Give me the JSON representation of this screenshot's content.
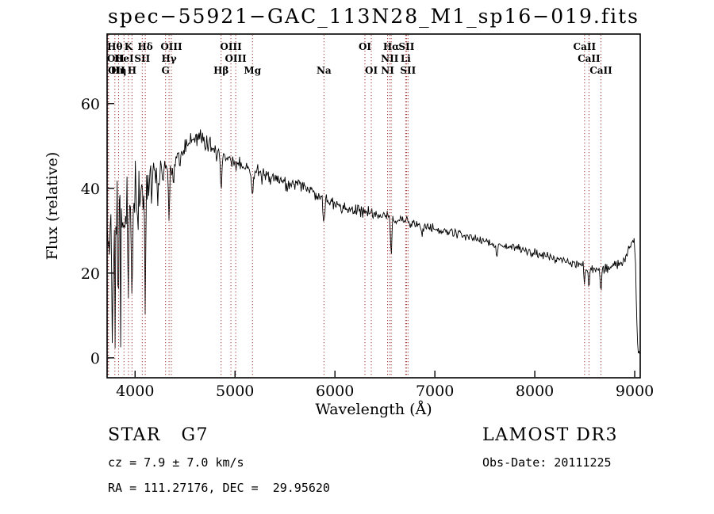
{
  "chart_data": {
    "type": "line",
    "title": "spec−55921−GAC_113N28_M1_sp16−019.fits",
    "xlabel": "Wavelength (Å)",
    "ylabel": "Flux (relative)",
    "xlim": [
      3720,
      9055
    ],
    "ylim": [
      -4.7,
      76.4
    ],
    "x_ticks": [
      4000,
      5000,
      6000,
      7000,
      8000,
      9000
    ],
    "y_ticks": [
      0,
      20,
      40,
      60
    ],
    "grid": false,
    "line_color": "#000000",
    "marker_line_color": "#a03232",
    "spectral_lines": [
      {
        "wavelength": 3727,
        "label": "OII",
        "row": 2,
        "dx": 10
      },
      {
        "wavelength": 3735,
        "label": "OII",
        "row": 3,
        "dx": 10
      },
      {
        "wavelength": 3798,
        "label": "Hθ",
        "row": 1
      },
      {
        "wavelength": 3835,
        "label": "Hη",
        "row": 3
      },
      {
        "wavelength": 3889,
        "label": "HeI",
        "row": 2
      },
      {
        "wavelength": 3934,
        "label": "K",
        "row": 1
      },
      {
        "wavelength": 3969,
        "label": "H",
        "row": 3
      },
      {
        "wavelength": 4072,
        "label": "SII",
        "row": 2
      },
      {
        "wavelength": 4102,
        "label": "Hδ",
        "row": 1
      },
      {
        "wavelength": 4305,
        "label": "G",
        "row": 3
      },
      {
        "wavelength": 4340,
        "label": "Hγ",
        "row": 2
      },
      {
        "wavelength": 4363,
        "label": "OIII",
        "row": 1
      },
      {
        "wavelength": 4861,
        "label": "Hβ",
        "row": 3
      },
      {
        "wavelength": 4959,
        "label": "OIII",
        "row": 1
      },
      {
        "wavelength": 5007,
        "label": "OIII",
        "row": 2
      },
      {
        "wavelength": 5175,
        "label": "Mg",
        "row": 3
      },
      {
        "wavelength": 5890,
        "label": "Na",
        "row": 3
      },
      {
        "wavelength": 6300,
        "label": "OI",
        "row": 1
      },
      {
        "wavelength": 6364,
        "label": "OI",
        "row": 3
      },
      {
        "wavelength": 6548,
        "label": "NII",
        "row": 2
      },
      {
        "wavelength": 6563,
        "label": "Hα",
        "row": 1
      },
      {
        "wavelength": 6527,
        "label": "NI",
        "row": 3
      },
      {
        "wavelength": 6708,
        "label": "Li",
        "row": 2
      },
      {
        "wavelength": 6716,
        "label": "SII",
        "row": 1
      },
      {
        "wavelength": 6731,
        "label": "SII",
        "row": 3
      },
      {
        "wavelength": 8498,
        "label": "CaII",
        "row": 1
      },
      {
        "wavelength": 8542,
        "label": "CaII",
        "row": 2
      },
      {
        "wavelength": 8662,
        "label": "CaII",
        "row": 3
      }
    ],
    "spectrum": {
      "seed": 42,
      "step": 7,
      "continuum": [
        [
          3720,
          29
        ],
        [
          3780,
          31
        ],
        [
          3840,
          33
        ],
        [
          3900,
          35
        ],
        [
          3960,
          36
        ],
        [
          4020,
          38
        ],
        [
          4080,
          39
        ],
        [
          4140,
          41
        ],
        [
          4200,
          42
        ],
        [
          4260,
          44
        ],
        [
          4320,
          45
        ],
        [
          4380,
          46
        ],
        [
          4440,
          47.5
        ],
        [
          4500,
          49
        ],
        [
          4560,
          50.5
        ],
        [
          4620,
          51.5
        ],
        [
          4660,
          52
        ],
        [
          4700,
          51
        ],
        [
          4760,
          50
        ],
        [
          4820,
          48.5
        ],
        [
          4880,
          47.5
        ],
        [
          4940,
          47
        ],
        [
          5000,
          46
        ],
        [
          5060,
          45.5
        ],
        [
          5120,
          45
        ],
        [
          5180,
          44
        ],
        [
          5240,
          44
        ],
        [
          5300,
          43
        ],
        [
          5360,
          42.5
        ],
        [
          5420,
          42
        ],
        [
          5480,
          41.5
        ],
        [
          5540,
          41
        ],
        [
          5600,
          41
        ],
        [
          5660,
          40.5
        ],
        [
          5720,
          40
        ],
        [
          5780,
          39
        ],
        [
          5840,
          38.5
        ],
        [
          5900,
          37.5
        ],
        [
          5960,
          36.5
        ],
        [
          6020,
          36
        ],
        [
          6080,
          35.5
        ],
        [
          6140,
          35
        ],
        [
          6200,
          35
        ],
        [
          6260,
          34.5
        ],
        [
          6320,
          34.5
        ],
        [
          6380,
          34
        ],
        [
          6440,
          33.5
        ],
        [
          6500,
          33.5
        ],
        [
          6560,
          33
        ],
        [
          6620,
          32.5
        ],
        [
          6680,
          32.5
        ],
        [
          6740,
          32
        ],
        [
          6800,
          31.5
        ],
        [
          6860,
          31
        ],
        [
          6920,
          31
        ],
        [
          6980,
          30.5
        ],
        [
          7040,
          30
        ],
        [
          7100,
          30
        ],
        [
          7160,
          29.5
        ],
        [
          7220,
          29
        ],
        [
          7280,
          29
        ],
        [
          7340,
          28.5
        ],
        [
          7400,
          28
        ],
        [
          7460,
          28
        ],
        [
          7520,
          27.5
        ],
        [
          7580,
          27
        ],
        [
          7640,
          27
        ],
        [
          7700,
          26.5
        ],
        [
          7760,
          26
        ],
        [
          7820,
          26
        ],
        [
          7880,
          25.5
        ],
        [
          7940,
          25
        ],
        [
          8000,
          25
        ],
        [
          8060,
          24.5
        ],
        [
          8120,
          24
        ],
        [
          8180,
          23.5
        ],
        [
          8240,
          23
        ],
        [
          8300,
          23
        ],
        [
          8360,
          22.5
        ],
        [
          8420,
          22
        ],
        [
          8480,
          22
        ],
        [
          8540,
          21.5
        ],
        [
          8600,
          21
        ],
        [
          8660,
          21
        ],
        [
          8720,
          21
        ],
        [
          8780,
          21.5
        ],
        [
          8840,
          22
        ],
        [
          8880,
          23
        ],
        [
          8920,
          24.5
        ],
        [
          8950,
          26
        ],
        [
          8975,
          27.5
        ],
        [
          8995,
          28
        ],
        [
          9008,
          22
        ],
        [
          9018,
          10
        ],
        [
          9028,
          3
        ],
        [
          9040,
          1.5
        ],
        [
          9052,
          1
        ]
      ],
      "noise": [
        [
          3720,
          20
        ],
        [
          3780,
          19
        ],
        [
          3840,
          17
        ],
        [
          3900,
          14
        ],
        [
          3960,
          13
        ],
        [
          4020,
          11
        ],
        [
          4080,
          9
        ],
        [
          4150,
          6
        ],
        [
          4250,
          4
        ],
        [
          4350,
          3.2
        ],
        [
          4500,
          2.8
        ],
        [
          4700,
          2.6
        ],
        [
          5000,
          2.3
        ],
        [
          5300,
          2.1
        ],
        [
          5600,
          2.0
        ],
        [
          5900,
          1.9
        ],
        [
          6200,
          1.7
        ],
        [
          6500,
          1.5
        ],
        [
          6800,
          1.4
        ],
        [
          7200,
          1.3
        ],
        [
          7600,
          1.2
        ],
        [
          8000,
          1.2
        ],
        [
          8400,
          1.3
        ],
        [
          8700,
          1.4
        ],
        [
          9055,
          1.6
        ]
      ],
      "absorption": [
        {
          "center": 3798,
          "depth": 10,
          "width": 9
        },
        {
          "center": 3835,
          "depth": 12,
          "width": 9
        },
        {
          "center": 3889,
          "depth": 12,
          "width": 9
        },
        {
          "center": 3934,
          "depth": 19,
          "width": 10
        },
        {
          "center": 3969,
          "depth": 19,
          "width": 10
        },
        {
          "center": 4102,
          "depth": 14,
          "width": 9
        },
        {
          "center": 4226,
          "depth": 7,
          "width": 7
        },
        {
          "center": 4340,
          "depth": 12,
          "width": 8
        },
        {
          "center": 4383,
          "depth": 6,
          "width": 7
        },
        {
          "center": 4861,
          "depth": 9,
          "width": 8
        },
        {
          "center": 5175,
          "depth": 6,
          "width": 12
        },
        {
          "center": 5270,
          "depth": 4,
          "width": 8
        },
        {
          "center": 5890,
          "depth": 7,
          "width": 10
        },
        {
          "center": 6563,
          "depth": 9,
          "width": 9
        },
        {
          "center": 6870,
          "depth": 2.5,
          "width": 12
        },
        {
          "center": 7620,
          "depth": 3,
          "width": 14
        },
        {
          "center": 8498,
          "depth": 4,
          "width": 8
        },
        {
          "center": 8542,
          "depth": 5,
          "width": 10
        },
        {
          "center": 8662,
          "depth": 5,
          "width": 10
        }
      ]
    }
  },
  "annotations": {
    "class_label": "STAR   G7",
    "survey": "LAMOST DR3",
    "cz": "cz = 7.9 ± 7.0 km/s",
    "obs_date": "Obs-Date: 20111225",
    "radec": "RA = 111.27176, DEC =  29.95620"
  }
}
